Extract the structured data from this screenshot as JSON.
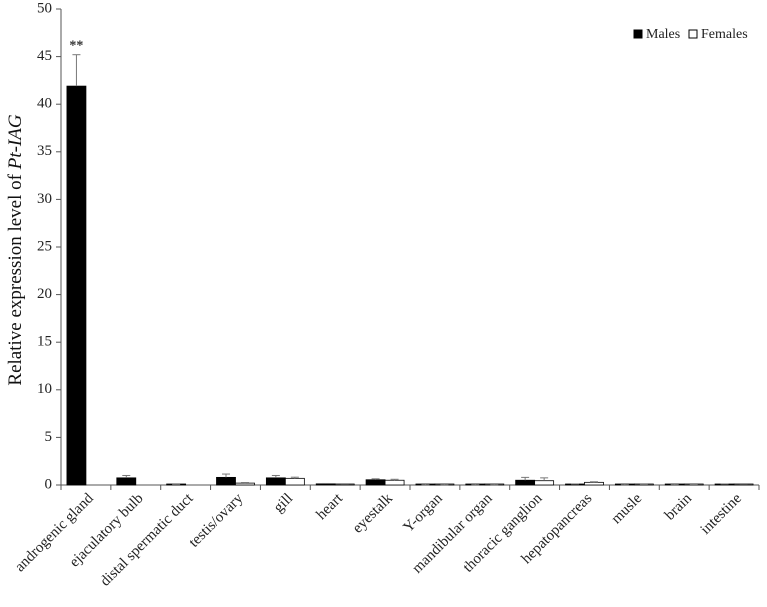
{
  "chart_data": {
    "type": "bar",
    "title": "",
    "xlabel": "",
    "ylabel": {
      "prefix": "Relative expression level of ",
      "gene": "Pt-IAG"
    },
    "ylim": [
      0,
      50
    ],
    "yticks": [
      0,
      5,
      10,
      15,
      20,
      25,
      30,
      35,
      40,
      45,
      50
    ],
    "grid": false,
    "legend_position": "top-right",
    "categories": [
      "androgenic gland",
      "ejaculatory bulb",
      "distal spermatic duct",
      "testis/ovary",
      "gill",
      "heart",
      "eyestalk",
      "Y-organ",
      "mandibular organ",
      "thoracic ganglion",
      "hepatopancreas",
      "musle",
      "brain",
      "intestine"
    ],
    "series": [
      {
        "name": "Males",
        "color": "#000000",
        "values": [
          41.9,
          0.75,
          0.05,
          0.8,
          0.75,
          0.12,
          0.55,
          0.02,
          0.02,
          0.5,
          0.08,
          0.02,
          0.03,
          0.08
        ],
        "errors": [
          3.3,
          0.25,
          0.02,
          0.35,
          0.25,
          0.04,
          0.1,
          0.01,
          0.01,
          0.3,
          0.03,
          0.01,
          0.01,
          0.03
        ]
      },
      {
        "name": "Females",
        "color": "#ffffff",
        "values": [
          null,
          null,
          null,
          0.2,
          0.7,
          0.1,
          0.5,
          0.02,
          0.02,
          0.45,
          0.28,
          0.05,
          0.04,
          0.1
        ],
        "errors": [
          null,
          null,
          null,
          0.06,
          0.12,
          0.03,
          0.1,
          0.01,
          0.01,
          0.3,
          0.06,
          0.02,
          0.01,
          0.03
        ]
      }
    ],
    "annotations": [
      {
        "text": "**",
        "category_index": 0,
        "series_index": 0
      }
    ]
  }
}
